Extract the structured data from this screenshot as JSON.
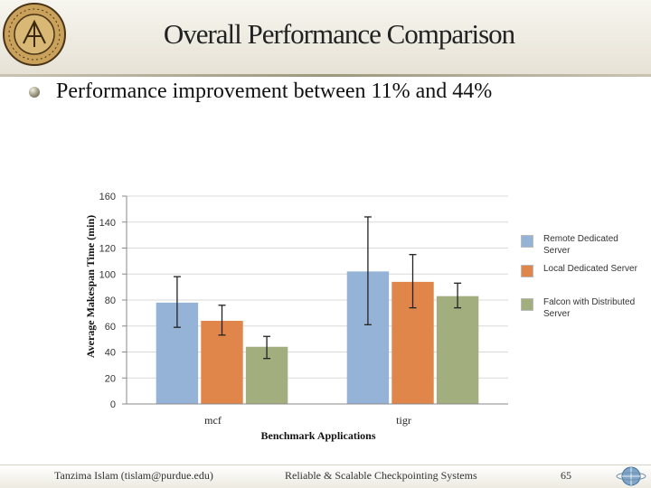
{
  "slide": {
    "title": "Overall Performance Comparison",
    "bullet": "Performance improvement between 11% and 44%",
    "logo_text": "purdue university"
  },
  "footer": {
    "author": "Tanzima Islam (tislam@purdue.edu)",
    "center": "Reliable & Scalable Checkpointing Systems",
    "page": "65"
  },
  "chart_data": {
    "type": "bar",
    "title": "",
    "xlabel": "Benchmark Applications",
    "ylabel": "Average Makespan Time (min)",
    "categories": [
      "mcf",
      "tigr"
    ],
    "ylim": [
      0,
      160
    ],
    "yticks": [
      "0",
      "20",
      "40",
      "60",
      "80",
      "100",
      "120",
      "140",
      "160"
    ],
    "grid": true,
    "legend_position": "right",
    "series": [
      {
        "name": "Remote Dedicated Server",
        "values": [
          78,
          102
        ],
        "error_low": [
          59,
          61
        ],
        "error_high": [
          98,
          144
        ],
        "color": "#95b3d7"
      },
      {
        "name": "Local Dedicated Server",
        "values": [
          64,
          94
        ],
        "error_low": [
          53,
          74
        ],
        "error_high": [
          76,
          115
        ],
        "color": "#e0864a"
      },
      {
        "name": "Falcon with Distributed Server",
        "values": [
          44,
          83
        ],
        "error_low": [
          35,
          74
        ],
        "error_high": [
          52,
          93
        ],
        "color": "#a3ae7e"
      }
    ]
  }
}
